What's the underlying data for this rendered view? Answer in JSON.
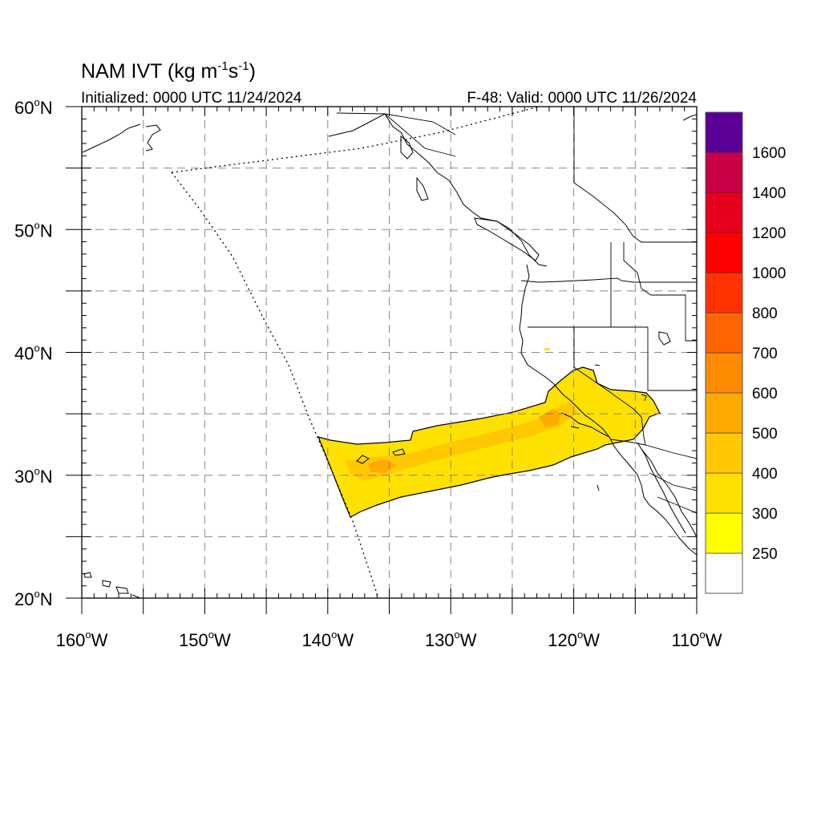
{
  "title": {
    "main": "NAM IVT (kg m",
    "sup1": "-1",
    "mid": "s",
    "sup2": "-1",
    "close": ")"
  },
  "subtitle_left": "Initialized: 0000 UTC 11/24/2024",
  "subtitle_right": "F-48: Valid: 0000 UTC 11/26/2024",
  "map": {
    "projection": "cylindrical equidistant",
    "lon_range": [
      -160,
      -110
    ],
    "lat_range": [
      20,
      60
    ],
    "grid": "dashed, every 5 degrees",
    "lat_labels": [
      {
        "value": 60,
        "text": "60",
        "deg": "o",
        "hemi": "N"
      },
      {
        "value": 50,
        "text": "50",
        "deg": "o",
        "hemi": "N"
      },
      {
        "value": 40,
        "text": "40",
        "deg": "o",
        "hemi": "N"
      },
      {
        "value": 30,
        "text": "30",
        "deg": "o",
        "hemi": "N"
      },
      {
        "value": 20,
        "text": "20",
        "deg": "o",
        "hemi": "N"
      }
    ],
    "lon_labels": [
      {
        "value": -160,
        "text": "160",
        "deg": "o",
        "hemi": "W"
      },
      {
        "value": -150,
        "text": "150",
        "deg": "o",
        "hemi": "W"
      },
      {
        "value": -140,
        "text": "140",
        "deg": "o",
        "hemi": "W"
      },
      {
        "value": -130,
        "text": "130",
        "deg": "o",
        "hemi": "W"
      },
      {
        "value": -120,
        "text": "120",
        "deg": "o",
        "hemi": "W"
      },
      {
        "value": -110,
        "text": "110",
        "deg": "o",
        "hemi": "W"
      }
    ]
  },
  "colorbar": {
    "levels": [
      "250",
      "300",
      "400",
      "500",
      "600",
      "700",
      "800",
      "1000",
      "1200",
      "1400",
      "1600"
    ],
    "colors": [
      "#ffffff",
      "#ffff00",
      "#ffe100",
      "#ffc800",
      "#ffaa00",
      "#ff8c00",
      "#ff6400",
      "#ff3200",
      "#ff0000",
      "#e6001e",
      "#c80046",
      "#8c006e",
      "#5a0096"
    ]
  },
  "ivt_region": {
    "peak_color": "#ffaa00",
    "base_color": "#ffe100",
    "edge_color": "#ffff00"
  }
}
